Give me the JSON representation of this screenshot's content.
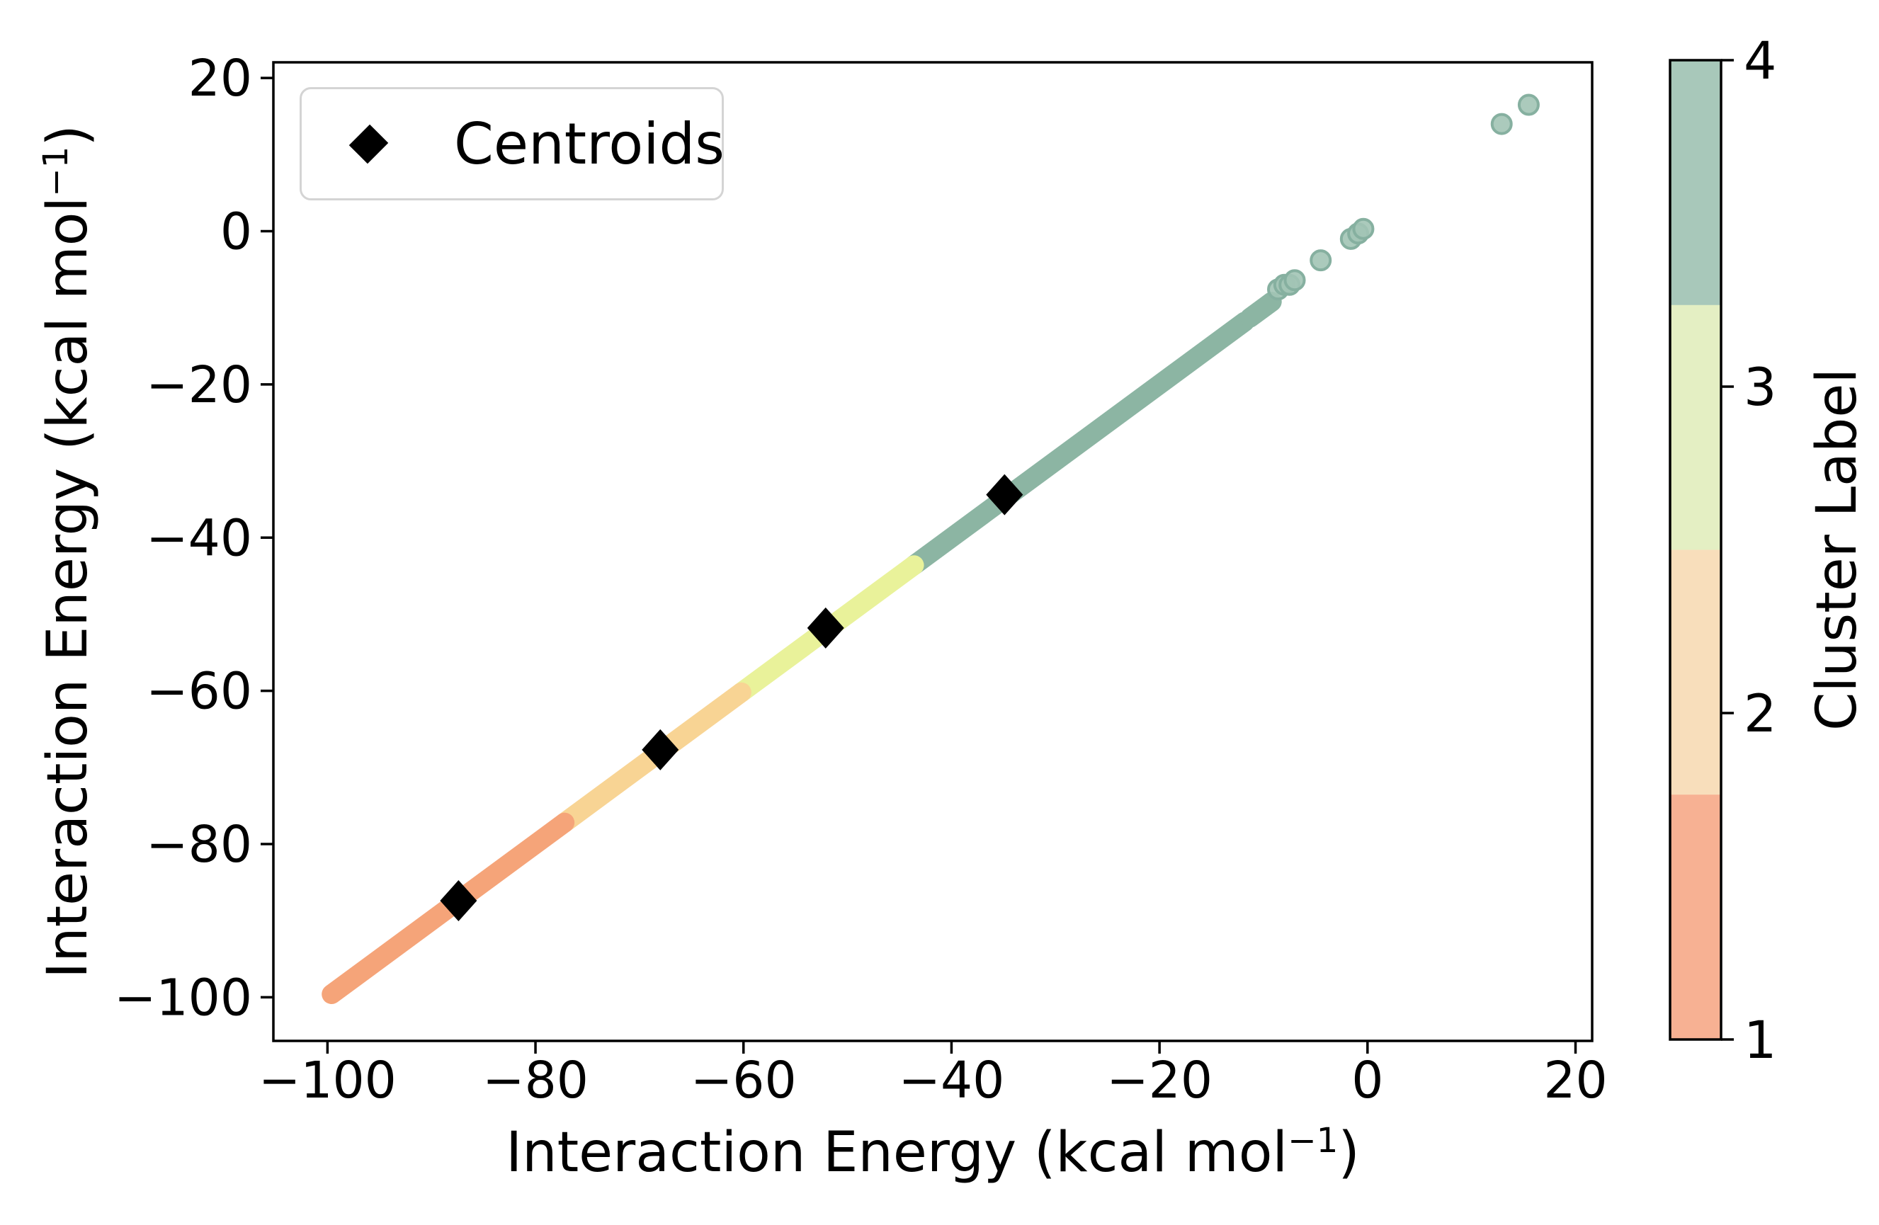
{
  "figure": {
    "legend": {
      "label": "Centroids"
    },
    "xlabel": {
      "pre": "Interaction Energy (kcal mol",
      "sup": "−1",
      "post": ")"
    },
    "ylabel": {
      "pre": "Interaction Energy (kcal mol",
      "sup": "−1",
      "post": ")"
    },
    "colorbar_label": "Cluster Label"
  },
  "chart_data": {
    "type": "scatter",
    "title": "",
    "xlabel": "Interaction Energy (kcal mol−1)",
    "ylabel": "Interaction Energy (kcal mol−1)",
    "xlim": [
      -105.2,
      21.6
    ],
    "ylim": [
      -105.7,
      22.05
    ],
    "xticks": [
      -100,
      -80,
      -60,
      -40,
      -20,
      0,
      20
    ],
    "xtick_labels": [
      "−100",
      "−80",
      "−60",
      "−40",
      "−20",
      "0",
      "20"
    ],
    "yticks": [
      20,
      0,
      -20,
      -40,
      -60,
      -80,
      -100
    ],
    "ytick_labels": [
      "20",
      "0",
      "−20",
      "−40",
      "−60",
      "−80",
      "−100"
    ],
    "grid": false,
    "legend": {
      "position": "upper left",
      "entries": [
        {
          "label": "Centroids",
          "marker": "diamond",
          "color": "#000000"
        }
      ]
    },
    "relation": "points lie along y = x",
    "cluster_colors": {
      "1": "#f5a479",
      "2": "#f8d494",
      "3": "#e9f29a",
      "4": "#8cb5a3"
    },
    "dense_runs": [
      {
        "cluster": 4,
        "x_start": -43.6,
        "x_end": -11.8
      },
      {
        "cluster": 4,
        "x_start": -11.3,
        "x_end": -9.2
      },
      {
        "cluster": 3,
        "x_start": -60.2,
        "x_end": -43.6
      },
      {
        "cluster": 2,
        "x_start": -77.2,
        "x_end": -60.2
      },
      {
        "cluster": 1,
        "x_start": -99.6,
        "x_end": -77.2
      }
    ],
    "sparse_points": [
      {
        "x": -8.6,
        "y": -7.6,
        "cluster": 4
      },
      {
        "x": -8.0,
        "y": -7.0,
        "cluster": 4
      },
      {
        "x": -7.5,
        "y": -7.0,
        "cluster": 4
      },
      {
        "x": -7.0,
        "y": -6.4,
        "cluster": 4
      },
      {
        "x": -4.5,
        "y": -3.8,
        "cluster": 4
      },
      {
        "x": -1.6,
        "y": -1.0,
        "cluster": 4
      },
      {
        "x": -0.9,
        "y": -0.3,
        "cluster": 4
      },
      {
        "x": -0.4,
        "y": 0.3,
        "cluster": 4
      },
      {
        "x": 12.9,
        "y": 14.0,
        "cluster": 4
      },
      {
        "x": 15.5,
        "y": 16.5,
        "cluster": 4
      }
    ],
    "sparse_point_style": {
      "fill": "#a2c4b5",
      "stroke": "#86b0a0"
    },
    "centroids": [
      {
        "x": -87.4,
        "y": -87.4,
        "cluster": 1
      },
      {
        "x": -68.0,
        "y": -67.7,
        "cluster": 2
      },
      {
        "x": -52.1,
        "y": -51.8,
        "cluster": 3
      },
      {
        "x": -34.9,
        "y": -34.4,
        "cluster": 4
      }
    ],
    "colorbar": {
      "label": "Cluster Label",
      "ticks": [
        4,
        3,
        2,
        1
      ],
      "tick_labels": [
        "4",
        "3",
        "2",
        "1"
      ],
      "segments": [
        {
          "value": 4,
          "color": "#a8c8ba"
        },
        {
          "value": 3,
          "color": "#e4efc3"
        },
        {
          "value": 2,
          "color": "#f8debb"
        },
        {
          "value": 1,
          "color": "#f7b193"
        }
      ]
    }
  }
}
